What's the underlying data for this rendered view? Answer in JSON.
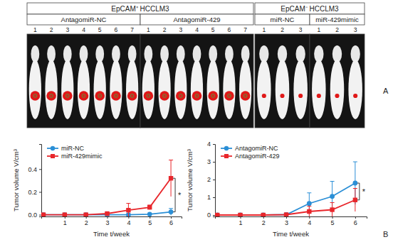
{
  "panel_labels": [
    "A",
    "B"
  ],
  "panel_a": {
    "groups": [
      {
        "title": "EpCAM⁺ HCCLM3",
        "subgroups": [
          {
            "label": "AntagomiR-NC",
            "mice": [
              1,
              2,
              3,
              4,
              5,
              6,
              7
            ]
          },
          {
            "label": "AntagomiR-429",
            "mice": [
              1,
              2,
              3,
              4,
              5,
              6,
              7
            ]
          }
        ]
      },
      {
        "title": "EpCAM⁻ HCCLM3",
        "subgroups": [
          {
            "label": "miR-NC",
            "mice": [
              1,
              2,
              3
            ]
          },
          {
            "label": "miR-429mimic",
            "mice": [
              1,
              2,
              3
            ]
          }
        ]
      }
    ]
  },
  "chart_data": [
    {
      "type": "line",
      "x": [
        0,
        1,
        2,
        3,
        4,
        5,
        6
      ],
      "xlim": [
        -0.1,
        6.5
      ],
      "xticks": [
        1,
        2,
        3,
        4,
        5,
        6
      ],
      "ylim": [
        -0.015,
        0.62
      ],
      "yticks": [
        {
          "value": 0,
          "label": "0.0"
        },
        {
          "value": 0.2,
          "label": "0.2"
        },
        {
          "value": 0.4,
          "label": "0.4"
        }
      ],
      "x_label": "Time t/week",
      "y_label": "Tumor volume V/cm³",
      "legend": "upper left",
      "annotations": [
        "*"
      ],
      "series": [
        {
          "name": "miR-NC",
          "color": "#2b8fd6",
          "marker": "circle",
          "values": [
            0,
            0,
            0,
            0,
            0,
            0.005,
            0.025
          ],
          "errors": [
            0,
            0,
            0,
            0,
            0,
            0.005,
            0.03
          ]
        },
        {
          "name": "miR-429mimic",
          "color": "#e8262b",
          "marker": "square",
          "values": [
            0,
            0,
            0,
            0.01,
            0.04,
            0.065,
            0.32
          ],
          "errors": [
            0,
            0,
            0,
            0.01,
            0.06,
            0.02,
            0.16
          ]
        }
      ]
    },
    {
      "type": "line",
      "x": [
        0,
        1,
        2,
        3,
        4,
        5,
        6
      ],
      "xlim": [
        -0.1,
        6.5
      ],
      "xticks": [
        1,
        2,
        3,
        4,
        5,
        6
      ],
      "ylim": [
        -0.08,
        4
      ],
      "yticks": [
        0,
        1,
        2,
        3,
        4
      ],
      "x_label": "Time t/week",
      "y_label": "Tumor volume V/cm³",
      "legend": "upper left",
      "annotations": [
        "*"
      ],
      "series": [
        {
          "name": "AntagomiR-NC",
          "color": "#2b8fd6",
          "marker": "circle",
          "values": [
            0,
            0,
            0,
            0.02,
            0.65,
            1.05,
            1.8
          ],
          "errors": [
            0,
            0,
            0,
            0.02,
            0.6,
            0.85,
            1.2
          ]
        },
        {
          "name": "AntagomiR-429",
          "color": "#e8262b",
          "marker": "square",
          "values": [
            0,
            0,
            0,
            0.02,
            0.2,
            0.3,
            0.85
          ],
          "errors": [
            0,
            0,
            0,
            0.01,
            0.3,
            0.4,
            0.65
          ]
        }
      ]
    }
  ]
}
